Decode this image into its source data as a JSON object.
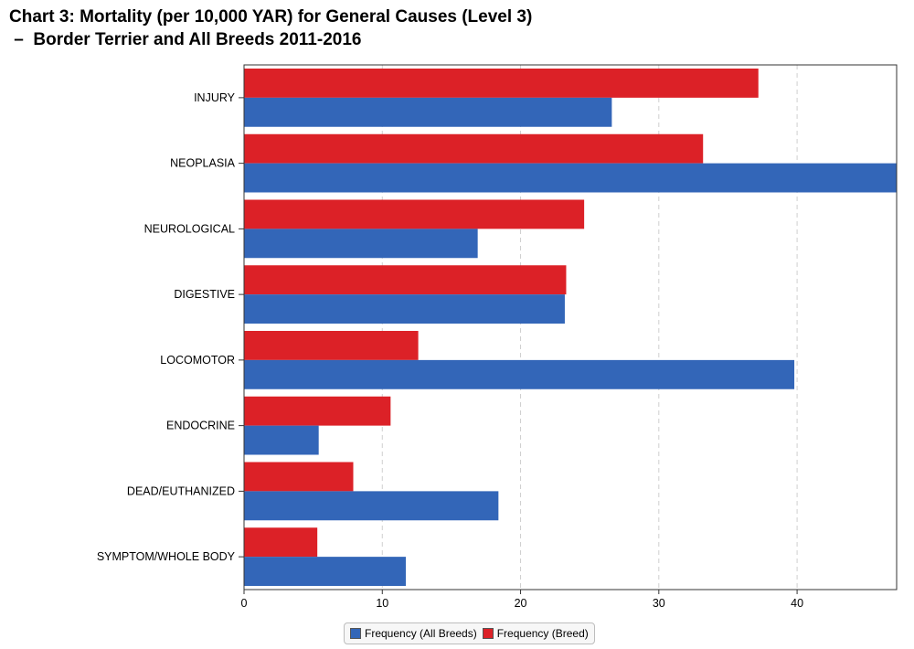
{
  "title": {
    "line1": "Chart 3: Mortality (per 10,000 YAR) for General Causes (Level 3)",
    "line2": " –  Border Terrier and All Breeds 2011-2016"
  },
  "colors": {
    "all_breeds": "#3366b8",
    "breed": "#dc2127",
    "gridline": "#cfcfcf",
    "axis": "#333333"
  },
  "chart_data": {
    "type": "bar",
    "orientation": "horizontal",
    "categories": [
      "INJURY",
      "NEOPLASIA",
      "NEUROLOGICAL",
      "DIGESTIVE",
      "LOCOMOTOR",
      "ENDOCRINE",
      "DEAD/EUTHANIZED",
      "SYMPTOM/WHOLE BODY"
    ],
    "series": [
      {
        "name": "Frequency (Breed)",
        "values": [
          37.2,
          33.2,
          24.6,
          23.3,
          12.6,
          10.6,
          7.9,
          5.3
        ]
      },
      {
        "name": "Frequency (All Breeds)",
        "values": [
          26.6,
          47.2,
          16.9,
          23.2,
          39.8,
          5.4,
          18.4,
          11.7
        ]
      }
    ],
    "xlim": [
      0,
      47.2
    ],
    "xticks": [
      0,
      10,
      20,
      30,
      40
    ],
    "grid": true,
    "legend_position": "bottom"
  },
  "legend": {
    "items": [
      {
        "label": "Frequency (All Breeds)",
        "color": "#3366b8"
      },
      {
        "label": "Frequency (Breed)",
        "color": "#dc2127"
      }
    ]
  }
}
